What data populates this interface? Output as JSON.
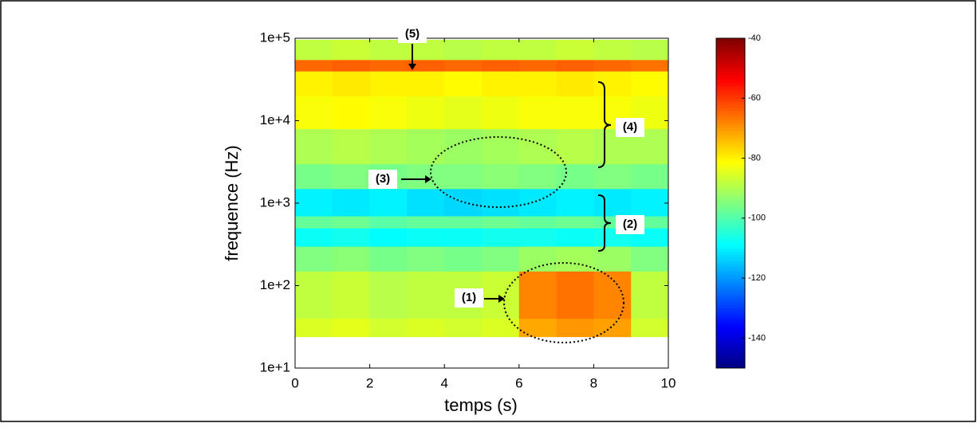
{
  "chart_data": {
    "type": "spectrogram",
    "xlabel": "temps (s)",
    "ylabel": "frequence (Hz)",
    "xlim": [
      0,
      10
    ],
    "xticks": [
      0,
      2,
      4,
      6,
      8,
      10
    ],
    "ylim": [
      10,
      100000
    ],
    "yscale": "log",
    "yticks": [
      {
        "value": 10,
        "label": "1e+1"
      },
      {
        "value": 100,
        "label": "1e+2"
      },
      {
        "value": 1000,
        "label": "1e+3"
      },
      {
        "value": 10000,
        "label": "1e+4"
      },
      {
        "value": 100000,
        "label": "1e+5"
      }
    ],
    "time_edges": [
      0,
      1,
      2,
      3,
      4,
      5,
      6,
      7,
      8,
      9,
      10
    ],
    "freq_edges": [
      24,
      40,
      150,
      300,
      500,
      700,
      1500,
      3000,
      8000,
      20000,
      40000,
      55000,
      96000
    ],
    "z": [
      [
        -85,
        -84,
        -86,
        -85,
        -86,
        -85,
        -72,
        -70,
        -71,
        -86
      ],
      [
        -88,
        -87,
        -89,
        -88,
        -88,
        -87,
        -68,
        -66,
        -68,
        -88
      ],
      [
        -95,
        -94,
        -96,
        -95,
        -96,
        -95,
        -92,
        -91,
        -92,
        -95
      ],
      [
        -108,
        -107,
        -109,
        -108,
        -108,
        -107,
        -107,
        -108,
        -107,
        -108
      ],
      [
        -98,
        -97,
        -99,
        -98,
        -98,
        -97,
        -98,
        -97,
        -98,
        -98
      ],
      [
        -110,
        -111,
        -110,
        -112,
        -113,
        -112,
        -111,
        -110,
        -111,
        -110
      ],
      [
        -96,
        -95,
        -96,
        -95,
        -95,
        -94,
        -95,
        -96,
        -95,
        -96
      ],
      [
        -90,
        -89,
        -90,
        -91,
        -92,
        -91,
        -90,
        -89,
        -90,
        -90
      ],
      [
        -82,
        -81,
        -82,
        -83,
        -84,
        -83,
        -82,
        -82,
        -82,
        -83
      ],
      [
        -80,
        -79,
        -80,
        -80,
        -81,
        -80,
        -80,
        -79,
        -80,
        -81
      ],
      [
        -65,
        -64,
        -65,
        -64,
        -65,
        -64,
        -65,
        -64,
        -65,
        -66
      ],
      [
        -88,
        -87,
        -88,
        -88,
        -89,
        -88,
        -88,
        -87,
        -88,
        -89
      ]
    ],
    "clim": [
      -150,
      -40
    ],
    "cticks": [
      -40,
      -60,
      -80,
      -100,
      -120,
      -140
    ],
    "colormap": "jet",
    "annotations": [
      "(1)",
      "(2)",
      "(3)",
      "(4)",
      "(5)"
    ]
  }
}
